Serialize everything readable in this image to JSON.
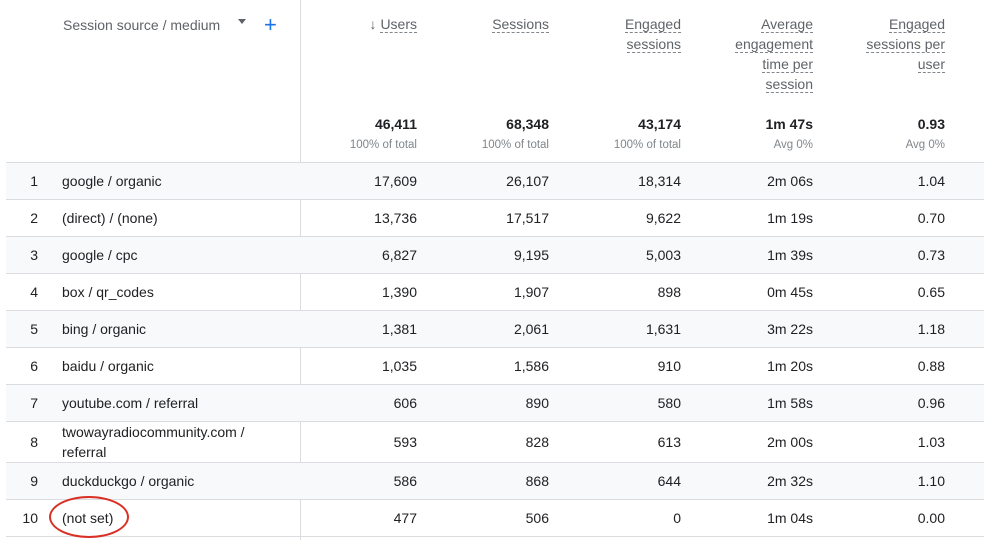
{
  "header": {
    "dimension_label": "Session source / medium",
    "dropdown_icon": "caret-down-icon",
    "add_icon": "plus-icon",
    "sort_arrow": "↓",
    "columns": [
      {
        "line1": "Users"
      },
      {
        "line1": "Sessions"
      },
      {
        "line1": "Engaged",
        "line2": "sessions"
      },
      {
        "line1": "Average",
        "line2": "engagement",
        "line3": "time per",
        "line4": "session"
      },
      {
        "line1": "Engaged",
        "line2": "sessions per",
        "line3": "user"
      }
    ]
  },
  "totals": [
    {
      "value": "46,411",
      "sub": "100% of total"
    },
    {
      "value": "68,348",
      "sub": "100% of total"
    },
    {
      "value": "43,174",
      "sub": "100% of total"
    },
    {
      "value": "1m 47s",
      "sub": "Avg 0%"
    },
    {
      "value": "0.93",
      "sub": "Avg 0%"
    }
  ],
  "rows": [
    {
      "index": "1",
      "source": "google / organic",
      "users": "17,609",
      "sessions": "26,107",
      "engaged": "18,314",
      "avg_time": "2m 06s",
      "per_user": "1.04"
    },
    {
      "index": "2",
      "source": "(direct) / (none)",
      "users": "13,736",
      "sessions": "17,517",
      "engaged": "9,622",
      "avg_time": "1m 19s",
      "per_user": "0.70"
    },
    {
      "index": "3",
      "source": "google / cpc",
      "users": "6,827",
      "sessions": "9,195",
      "engaged": "5,003",
      "avg_time": "1m 39s",
      "per_user": "0.73"
    },
    {
      "index": "4",
      "source": "box / qr_codes",
      "users": "1,390",
      "sessions": "1,907",
      "engaged": "898",
      "avg_time": "0m 45s",
      "per_user": "0.65"
    },
    {
      "index": "5",
      "source": "bing / organic",
      "users": "1,381",
      "sessions": "2,061",
      "engaged": "1,631",
      "avg_time": "3m 22s",
      "per_user": "1.18"
    },
    {
      "index": "6",
      "source": "baidu / organic",
      "users": "1,035",
      "sessions": "1,586",
      "engaged": "910",
      "avg_time": "1m 20s",
      "per_user": "0.88"
    },
    {
      "index": "7",
      "source": "youtube.com / referral",
      "users": "606",
      "sessions": "890",
      "engaged": "580",
      "avg_time": "1m 58s",
      "per_user": "0.96"
    },
    {
      "index": "8",
      "source": "twowayradiocommunity.com / referral",
      "users": "593",
      "sessions": "828",
      "engaged": "613",
      "avg_time": "2m 00s",
      "per_user": "1.03"
    },
    {
      "index": "9",
      "source": "duckduckgo / organic",
      "users": "586",
      "sessions": "868",
      "engaged": "644",
      "avg_time": "2m 32s",
      "per_user": "1.10"
    },
    {
      "index": "10",
      "source": "(not set)",
      "users": "477",
      "sessions": "506",
      "engaged": "0",
      "avg_time": "1m 04s",
      "per_user": "0.00"
    }
  ],
  "colors": {
    "accent": "#1a73e8",
    "highlight_circle": "#d93025",
    "row_shade": "#f8f9fa",
    "divider": "#dadce0"
  }
}
